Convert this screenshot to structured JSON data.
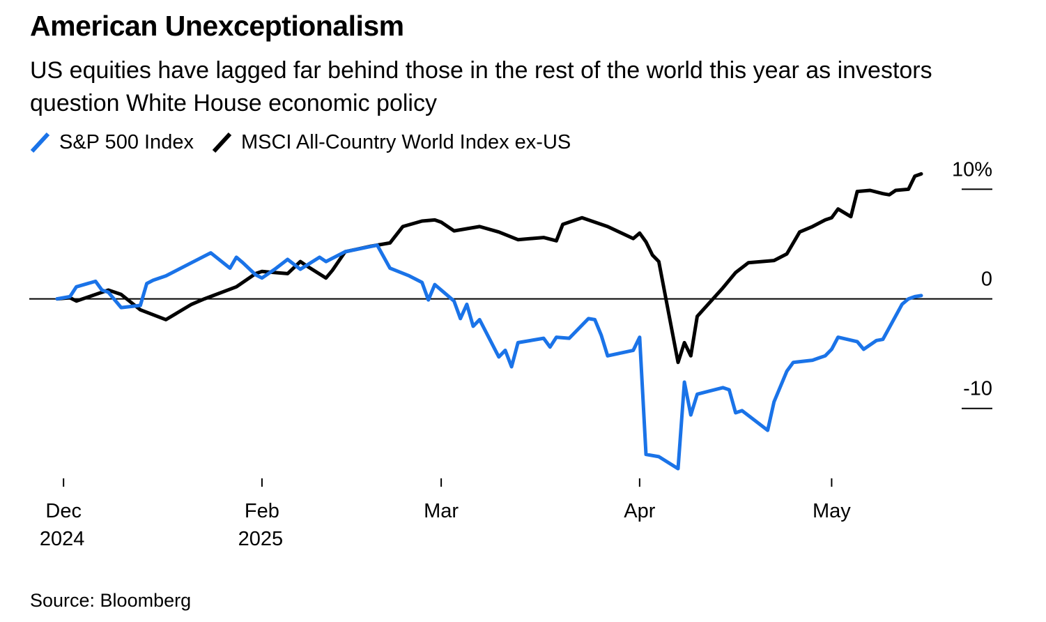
{
  "header": {
    "title": "American Unexceptionalism",
    "subtitle": "US equities have lagged far behind those in the rest of the world this year as investors question White House economic policy"
  },
  "footer": {
    "source": "Source: Bloomberg"
  },
  "chart_data": {
    "type": "line",
    "title": "American Unexceptionalism",
    "subtitle": "US equities have lagged far behind those in the rest of the world this year as investors question White House economic policy",
    "xlabel": "",
    "ylabel": "",
    "x_range": [
      "2024-12-31",
      "2025-05-15"
    ],
    "ylim": [
      -16,
      12
    ],
    "y_ticks": [
      {
        "value": 10,
        "label": "10%"
      },
      {
        "value": 0,
        "label": "0"
      },
      {
        "value": -10,
        "label": "-10"
      }
    ],
    "x_ticks": [
      {
        "date": "2025-01-01",
        "label1": "Dec",
        "label2": "2024"
      },
      {
        "date": "2025-02-01",
        "label1": "Feb",
        "label2": "2025"
      },
      {
        "date": "2025-03-01",
        "label1": "Mar",
        "label2": ""
      },
      {
        "date": "2025-04-01",
        "label1": "Apr",
        "label2": ""
      },
      {
        "date": "2025-05-01",
        "label1": "May",
        "label2": ""
      }
    ],
    "zero_line": true,
    "grid": false,
    "legend_position": "top-left",
    "y_axis_side": "right",
    "series": [
      {
        "name": "MSCI All-Country World Index ex-US",
        "color": "#000000",
        "points": [
          [
            "2024-12-31",
            0.0
          ],
          [
            "2025-01-02",
            0.1
          ],
          [
            "2025-01-03",
            -0.2
          ],
          [
            "2025-01-07",
            0.6
          ],
          [
            "2025-01-08",
            0.8
          ],
          [
            "2025-01-10",
            0.4
          ],
          [
            "2025-01-13",
            -1.0
          ],
          [
            "2025-01-17",
            -1.9
          ],
          [
            "2025-01-21",
            -0.5
          ],
          [
            "2025-01-23",
            0.0
          ],
          [
            "2025-01-28",
            1.1
          ],
          [
            "2025-01-31",
            2.3
          ],
          [
            "2025-02-01",
            2.5
          ],
          [
            "2025-02-05",
            2.3
          ],
          [
            "2025-02-07",
            3.4
          ],
          [
            "2025-02-08",
            3.0
          ],
          [
            "2025-02-11",
            1.9
          ],
          [
            "2025-02-12",
            2.6
          ],
          [
            "2025-02-14",
            4.3
          ],
          [
            "2025-02-18",
            4.8
          ],
          [
            "2025-02-21",
            5.1
          ],
          [
            "2025-02-23",
            6.6
          ],
          [
            "2025-02-26",
            7.1
          ],
          [
            "2025-02-28",
            7.2
          ],
          [
            "2025-03-01",
            7.0
          ],
          [
            "2025-03-03",
            6.2
          ],
          [
            "2025-03-07",
            6.6
          ],
          [
            "2025-03-10",
            6.1
          ],
          [
            "2025-03-13",
            5.4
          ],
          [
            "2025-03-17",
            5.6
          ],
          [
            "2025-03-19",
            5.3
          ],
          [
            "2025-03-20",
            6.8
          ],
          [
            "2025-03-23",
            7.4
          ],
          [
            "2025-03-27",
            6.6
          ],
          [
            "2025-03-31",
            5.5
          ],
          [
            "2025-04-01",
            6.0
          ],
          [
            "2025-04-02",
            5.2
          ],
          [
            "2025-04-03",
            4.0
          ],
          [
            "2025-04-04",
            3.4
          ],
          [
            "2025-04-07",
            -5.8
          ],
          [
            "2025-04-08",
            -4.0
          ],
          [
            "2025-04-09",
            -5.2
          ],
          [
            "2025-04-10",
            -1.6
          ],
          [
            "2025-04-14",
            1.0
          ],
          [
            "2025-04-16",
            2.4
          ],
          [
            "2025-04-18",
            3.3
          ],
          [
            "2025-04-22",
            3.5
          ],
          [
            "2025-04-24",
            4.1
          ],
          [
            "2025-04-26",
            6.1
          ],
          [
            "2025-04-28",
            6.6
          ],
          [
            "2025-04-30",
            7.2
          ],
          [
            "2025-05-01",
            7.4
          ],
          [
            "2025-05-02",
            8.2
          ],
          [
            "2025-05-04",
            7.5
          ],
          [
            "2025-05-05",
            9.8
          ],
          [
            "2025-05-07",
            9.9
          ],
          [
            "2025-05-09",
            9.6
          ],
          [
            "2025-05-10",
            9.5
          ],
          [
            "2025-05-11",
            9.9
          ],
          [
            "2025-05-13",
            10.0
          ],
          [
            "2025-05-14",
            11.2
          ],
          [
            "2025-05-15",
            11.4
          ]
        ]
      },
      {
        "name": "S&P 500 Index",
        "color": "#1a73e8",
        "points": [
          [
            "2024-12-31",
            0.0
          ],
          [
            "2025-01-02",
            0.2
          ],
          [
            "2025-01-03",
            1.1
          ],
          [
            "2025-01-06",
            1.6
          ],
          [
            "2025-01-07",
            0.8
          ],
          [
            "2025-01-08",
            0.6
          ],
          [
            "2025-01-10",
            -0.8
          ],
          [
            "2025-01-13",
            -0.6
          ],
          [
            "2025-01-14",
            1.4
          ],
          [
            "2025-01-15",
            1.7
          ],
          [
            "2025-01-17",
            2.1
          ],
          [
            "2025-01-21",
            3.3
          ],
          [
            "2025-01-24",
            4.2
          ],
          [
            "2025-01-27",
            2.8
          ],
          [
            "2025-01-28",
            3.8
          ],
          [
            "2025-01-29",
            3.3
          ],
          [
            "2025-01-31",
            2.2
          ],
          [
            "2025-02-01",
            1.9
          ],
          [
            "2025-02-03",
            2.7
          ],
          [
            "2025-02-05",
            3.6
          ],
          [
            "2025-02-07",
            2.7
          ],
          [
            "2025-02-10",
            3.8
          ],
          [
            "2025-02-11",
            3.4
          ],
          [
            "2025-02-14",
            4.3
          ],
          [
            "2025-02-19",
            4.9
          ],
          [
            "2025-02-21",
            2.8
          ],
          [
            "2025-02-24",
            2.1
          ],
          [
            "2025-02-26",
            1.5
          ],
          [
            "2025-02-27",
            -0.1
          ],
          [
            "2025-02-28",
            1.3
          ],
          [
            "2025-03-03",
            -0.2
          ],
          [
            "2025-03-04",
            -1.8
          ],
          [
            "2025-03-05",
            -0.5
          ],
          [
            "2025-03-06",
            -2.5
          ],
          [
            "2025-03-07",
            -1.9
          ],
          [
            "2025-03-10",
            -5.3
          ],
          [
            "2025-03-11",
            -4.7
          ],
          [
            "2025-03-12",
            -6.2
          ],
          [
            "2025-03-13",
            -4.0
          ],
          [
            "2025-03-17",
            -3.6
          ],
          [
            "2025-03-18",
            -4.4
          ],
          [
            "2025-03-19",
            -3.5
          ],
          [
            "2025-03-21",
            -3.6
          ],
          [
            "2025-03-24",
            -1.8
          ],
          [
            "2025-03-25",
            -1.9
          ],
          [
            "2025-03-26",
            -3.3
          ],
          [
            "2025-03-27",
            -5.2
          ],
          [
            "2025-03-31",
            -4.7
          ],
          [
            "2025-04-01",
            -3.5
          ],
          [
            "2025-04-02",
            -14.2
          ],
          [
            "2025-04-04",
            -14.4
          ],
          [
            "2025-04-07",
            -15.5
          ],
          [
            "2025-04-08",
            -7.6
          ],
          [
            "2025-04-09",
            -10.6
          ],
          [
            "2025-04-10",
            -8.7
          ],
          [
            "2025-04-14",
            -8.1
          ],
          [
            "2025-04-15",
            -8.3
          ],
          [
            "2025-04-16",
            -10.4
          ],
          [
            "2025-04-17",
            -10.2
          ],
          [
            "2025-04-21",
            -12.0
          ],
          [
            "2025-04-22",
            -9.4
          ],
          [
            "2025-04-24",
            -6.6
          ],
          [
            "2025-04-25",
            -5.8
          ],
          [
            "2025-04-28",
            -5.6
          ],
          [
            "2025-04-29",
            -5.4
          ],
          [
            "2025-04-30",
            -5.2
          ],
          [
            "2025-05-01",
            -4.6
          ],
          [
            "2025-05-02",
            -3.5
          ],
          [
            "2025-05-05",
            -3.9
          ],
          [
            "2025-05-06",
            -4.6
          ],
          [
            "2025-05-08",
            -3.8
          ],
          [
            "2025-05-09",
            -3.7
          ],
          [
            "2025-05-12",
            -0.5
          ],
          [
            "2025-05-13",
            0.0
          ],
          [
            "2025-05-14",
            0.2
          ],
          [
            "2025-05-15",
            0.3
          ]
        ]
      }
    ]
  }
}
